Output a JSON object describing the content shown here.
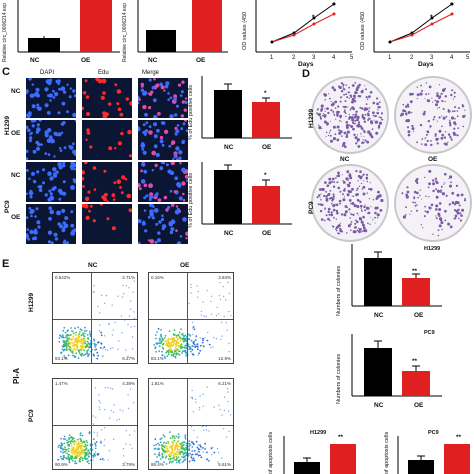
{
  "panel_letters": {
    "c": "C",
    "d": "D",
    "e": "E"
  },
  "top": {
    "chart1_ylabel": "Relative circ_0006214 exp",
    "chart2_ylabel": "Relative circ_0006214 exp",
    "nc": "NC",
    "oe": "OE",
    "od_ylabel": "OD values (450",
    "days": "Days",
    "day_ticks": [
      "1",
      "2",
      "3",
      "4",
      "5"
    ],
    "star": "*"
  },
  "panel_c": {
    "col_headers": [
      "DAPI",
      "Edu",
      "Merge"
    ],
    "rows": [
      {
        "cell": "H1299",
        "group": "NC"
      },
      {
        "cell": "H1299",
        "group": "OE"
      },
      {
        "cell": "PC9",
        "group": "NC"
      },
      {
        "cell": "PC9",
        "group": "OE"
      }
    ],
    "row_groups": [
      "NC",
      "OE",
      "NC",
      "OE"
    ],
    "cell_lines": [
      "H1299",
      "PC9"
    ],
    "ylabel": "% of Edu positive cells",
    "star": "*"
  },
  "panel_d": {
    "col_headers": [
      "NC",
      "OE"
    ],
    "cell_lines": [
      "H1299",
      "PC9"
    ],
    "col_ylabel": "Numbers of colonies",
    "sig": "**"
  },
  "panel_e": {
    "y_axis": "PI-A",
    "col_headers": [
      "NC",
      "OE"
    ],
    "cell_lines": [
      "H1299",
      "PC9"
    ],
    "quadrants": [
      {
        "q1": "0.542%",
        "q2": "2.71%",
        "q3": "93.1%",
        "q4": "6.27%"
      },
      {
        "q1": "0.16%",
        "q2": "3.84%",
        "q3": "83.1%",
        "q4": "12.9%"
      },
      {
        "q1": "1.47%",
        "q2": "4.38%",
        "q3": "90.9%",
        "q4": "3.79%"
      },
      {
        "q1": "1.81%",
        "q2": "6.21%",
        "q3": "86.4%",
        "q4": "5.61%"
      }
    ],
    "apop_ylabel": "of apoptosis cells",
    "sig": "**"
  },
  "colors": {
    "nc": "#000000",
    "oe": "#e02020",
    "dapi": "#3b6cff",
    "edu": "#ff2a2a",
    "crystal_violet": "#7b5aa6"
  },
  "chart_data": [
    {
      "type": "bar",
      "ylabel": "Relative circ_0006214 exp",
      "categories": [
        "NC",
        "OE"
      ],
      "values": [
        1.0,
        6.0
      ],
      "colors": [
        "#000000",
        "#e02020"
      ]
    },
    {
      "type": "bar",
      "ylabel": "Relative circ_0006214 exp",
      "categories": [
        "NC",
        "OE"
      ],
      "values": [
        1.0,
        5.5
      ],
      "colors": [
        "#000000",
        "#e02020"
      ]
    },
    {
      "type": "line",
      "ylabel": "OD values (450",
      "xlabel": "Days",
      "x": [
        1,
        2,
        3,
        4
      ],
      "series": [
        {
          "values": [
            0.3,
            0.6,
            1.0,
            1.6
          ]
        },
        {
          "values": [
            0.3,
            0.55,
            0.8,
            1.2
          ]
        }
      ]
    },
    {
      "type": "line",
      "ylabel": "OD values (450",
      "xlabel": "Days",
      "x": [
        1,
        2,
        3,
        4
      ],
      "series": [
        {
          "values": [
            0.3,
            0.6,
            1.0,
            1.6
          ]
        },
        {
          "values": [
            0.3,
            0.55,
            0.8,
            1.2
          ]
        }
      ]
    },
    {
      "type": "bar",
      "ylabel": "% of Edu positive cells",
      "categories": [
        "NC",
        "OE"
      ],
      "values": [
        50,
        40
      ],
      "star": "*"
    },
    {
      "type": "bar",
      "ylabel": "% of Edu positive cells",
      "categories": [
        "NC",
        "OE"
      ],
      "values": [
        53,
        40
      ],
      "star": "*"
    },
    {
      "type": "bar",
      "title": "H1299",
      "ylabel": "Numbers of colonies",
      "categories": [
        "NC",
        "OE"
      ],
      "values": [
        640,
        380
      ],
      "sig": "**"
    },
    {
      "type": "bar",
      "title": "PC9",
      "ylabel": "Numbers of colonies",
      "categories": [
        "NC",
        "OE"
      ],
      "values": [
        520,
        270
      ],
      "sig": "**"
    },
    {
      "type": "bar",
      "title": "H1299",
      "ylabel": "of apoptosis cells",
      "categories": [
        "NC",
        "OE"
      ],
      "values": [
        8,
        16
      ],
      "sig": "**"
    },
    {
      "type": "bar",
      "title": "PC9",
      "ylabel": "of apoptosis cells",
      "categories": [
        "NC",
        "OE"
      ],
      "values": [
        10,
        19
      ],
      "sig": "**"
    }
  ]
}
